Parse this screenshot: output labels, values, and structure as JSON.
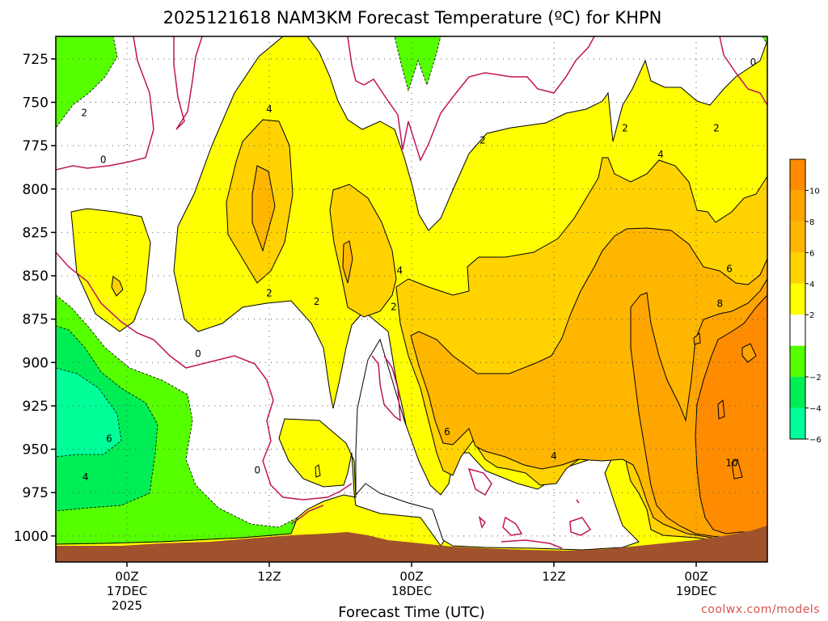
{
  "chart_data": {
    "type": "contour",
    "title": "2025121618 NAM3KM Forecast Temperature (ºC) for KHPN",
    "xlabel": "Forecast Time (UTC)",
    "ylabel": "",
    "y_unit": "hPa",
    "y_ticks": [
      725,
      750,
      775,
      800,
      825,
      850,
      875,
      900,
      925,
      950,
      975,
      1000
    ],
    "y_range": [
      1015,
      712
    ],
    "x_unit": "forecast hour",
    "x_range": [
      -6,
      54
    ],
    "x_ticks": [
      {
        "hour": 0,
        "lines": [
          "00Z",
          "17DEC",
          "2025"
        ]
      },
      {
        "hour": 12,
        "lines": [
          "12Z"
        ]
      },
      {
        "hour": 24,
        "lines": [
          "00Z",
          "18DEC"
        ]
      },
      {
        "hour": 36,
        "lines": [
          "12Z"
        ]
      },
      {
        "hour": 48,
        "lines": [
          "00Z",
          "19DEC"
        ]
      }
    ],
    "grid": true,
    "legend_position": "right",
    "colorbar": {
      "labels": [
        "10",
        "8",
        "6",
        "4",
        "2",
        "−2",
        "−4",
        "−6"
      ],
      "bins": [
        {
          "from": 10,
          "to": 12,
          "color": "#ff8c00"
        },
        {
          "from": 8,
          "to": 10,
          "color": "#ffa500"
        },
        {
          "from": 6,
          "to": 8,
          "color": "#ffb600"
        },
        {
          "from": 4,
          "to": 6,
          "color": "#ffd200"
        },
        {
          "from": 2,
          "to": 4,
          "color": "#ffff00"
        },
        {
          "from": -2,
          "to": 2,
          "color": "#ffffff"
        },
        {
          "from": -4,
          "to": -2,
          "color": "#55ff00"
        },
        {
          "from": -6,
          "to": -4,
          "color": "#00ee55"
        },
        {
          "from": -8,
          "to": -6,
          "color": "#00ff99"
        }
      ]
    },
    "contour_labels": [
      {
        "text": "2",
        "hour": -3.6,
        "p": 756
      },
      {
        "text": "0",
        "hour": -2.0,
        "p": 783
      },
      {
        "text": "4",
        "hour": 12.0,
        "p": 754
      },
      {
        "text": "2",
        "hour": 12.0,
        "p": 860
      },
      {
        "text": "2",
        "hour": 16.0,
        "p": 865
      },
      {
        "text": "0",
        "hour": 6.0,
        "p": 895
      },
      {
        "text": "0",
        "hour": 11.0,
        "p": 962
      },
      {
        "text": "4",
        "hour": 23.0,
        "p": 847
      },
      {
        "text": "2",
        "hour": 22.5,
        "p": 868
      },
      {
        "text": "6",
        "hour": 27.0,
        "p": 940
      },
      {
        "text": "2",
        "hour": 30.0,
        "p": 772
      },
      {
        "text": "4",
        "hour": 36.0,
        "p": 954
      },
      {
        "text": "2",
        "hour": 42.0,
        "p": 765
      },
      {
        "text": "4",
        "hour": 45.0,
        "p": 780
      },
      {
        "text": "2",
        "hour": 49.7,
        "p": 765
      },
      {
        "text": "0",
        "hour": 52.8,
        "p": 727
      },
      {
        "text": "6",
        "hour": 50.8,
        "p": 846
      },
      {
        "text": "8",
        "hour": 50.0,
        "p": 866
      },
      {
        "text": "10",
        "hour": 51.0,
        "p": 958
      },
      {
        "text": "6",
        "hour": -1.5,
        "p": 944
      },
      {
        "text": "4",
        "hour": -3.5,
        "p": 966
      }
    ]
  },
  "credit": "coolwx.com/models"
}
